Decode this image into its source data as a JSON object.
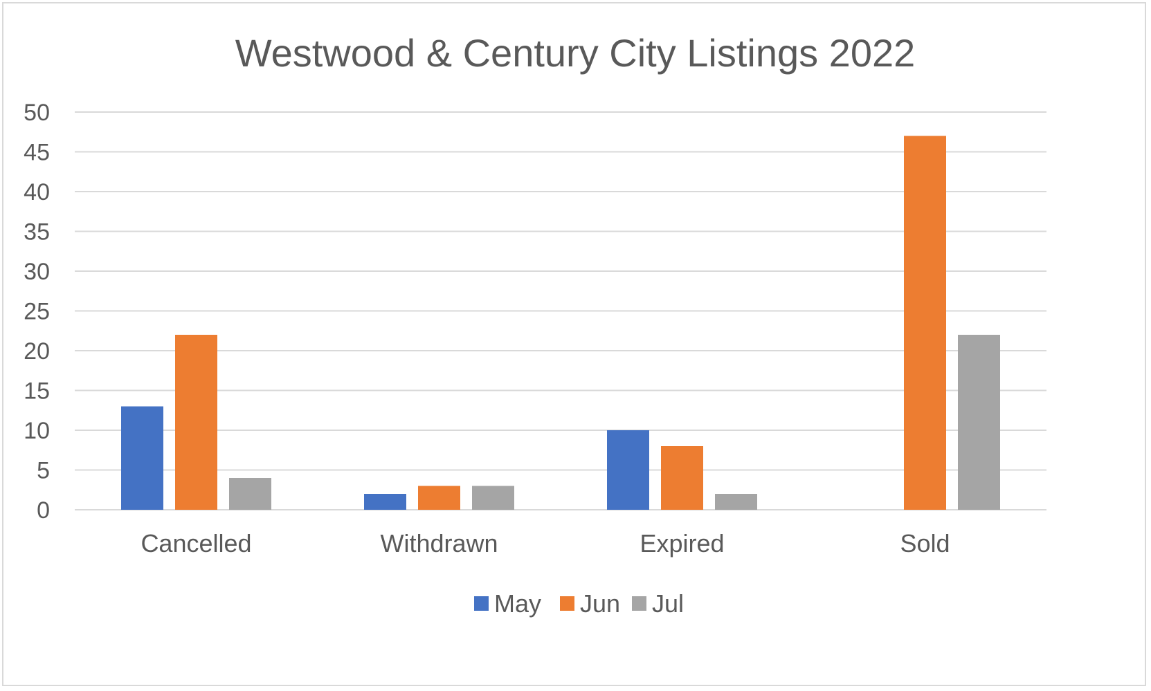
{
  "chart_data": {
    "type": "bar",
    "title": "Westwood & Century City Listings 2022",
    "xlabel": "",
    "ylabel": "",
    "categories": [
      "Cancelled",
      "Withdrawn",
      "Expired",
      "Sold"
    ],
    "series": [
      {
        "name": "May",
        "color": "#4472c4",
        "values": [
          13,
          2,
          10,
          0
        ]
      },
      {
        "name": "Jun",
        "color": "#ed7d31",
        "values": [
          22,
          3,
          8,
          47
        ]
      },
      {
        "name": "Jul",
        "color": "#a5a5a5",
        "values": [
          4,
          3,
          2,
          22
        ]
      }
    ],
    "ylim": [
      0,
      50
    ],
    "yticks": [
      "0",
      "5",
      "10",
      "15",
      "20",
      "25",
      "30",
      "35",
      "40",
      "45",
      "50"
    ],
    "grid": true,
    "legend_position": "bottom"
  }
}
